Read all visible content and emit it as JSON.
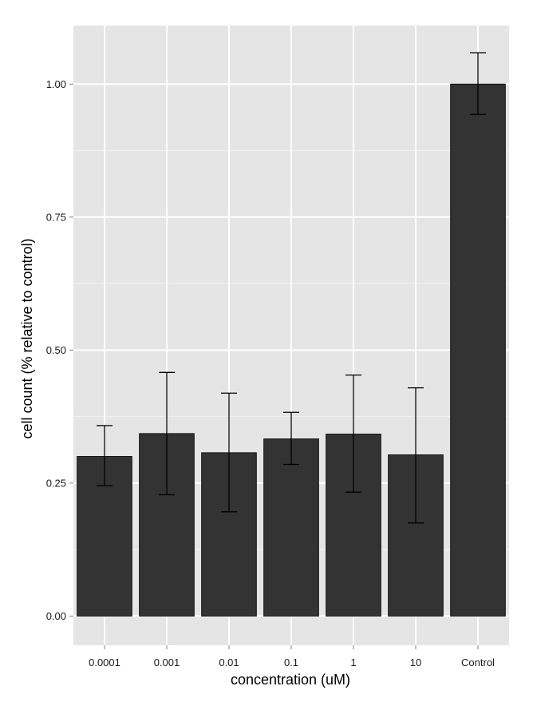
{
  "chart_data": {
    "type": "bar",
    "title": "",
    "xlabel": "concentration  (uM)",
    "ylabel": "cell count  (% relative to control)",
    "categories": [
      "0.0001",
      "0.001",
      "0.01",
      "0.1",
      "1",
      "10",
      "Control"
    ],
    "values": [
      0.3,
      0.343,
      0.307,
      0.333,
      0.342,
      0.303,
      1.0
    ],
    "error_lower": [
      0.245,
      0.228,
      0.196,
      0.285,
      0.233,
      0.175,
      0.943
    ],
    "error_upper": [
      0.358,
      0.458,
      0.419,
      0.383,
      0.453,
      0.429,
      1.059
    ],
    "ylim": [
      -0.055,
      1.11
    ],
    "yticks": [
      0.0,
      0.25,
      0.5,
      0.75,
      1.0
    ],
    "ytick_labels": [
      "0.00",
      "0.25",
      "0.50",
      "0.75",
      "1.00"
    ],
    "grid": true,
    "legend": "none",
    "colors": {
      "bar_fill": "#333333",
      "bar_stroke": "#111111",
      "panel_background": "#e5e5e5",
      "grid_major": "#ffffff",
      "grid_minor": "#f2f2f2",
      "error_bar": "#000000"
    }
  }
}
